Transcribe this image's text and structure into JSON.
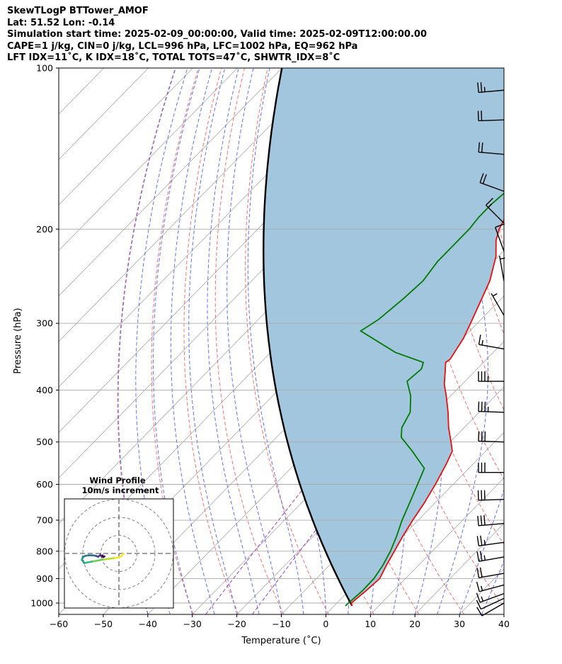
{
  "header": {
    "line1": "SkewTLogP BTTower_AMOF",
    "line2": "Lat: 51.52   Lon: -0.14",
    "line3": "Simulation start time: 2025-02-09_00:00:00, Valid time: 2025-02-09T12:00:00.00",
    "line4": "CAPE=1 j/kg, CIN=0 j/kg, LCL=996 hPa, LFC=1002 hPa, EQ=962 hPa",
    "line5": "LFT IDX=11˚C, K IDX=18˚C, TOTAL TOTS=47˚C, SHWTR_IDX=8˚C"
  },
  "chart_data": {
    "type": "line",
    "subtype": "skew-t log-p",
    "xlabel": "Temperature (˚C)",
    "ylabel": "Pressure (hPa)",
    "xlim": [
      -60,
      40
    ],
    "ylim": [
      1050,
      100
    ],
    "y_scale": "log",
    "x_ticks": [
      -60,
      -50,
      -40,
      -30,
      -20,
      -10,
      0,
      10,
      20,
      30,
      40
    ],
    "x_tick_labels": [
      "−60",
      "−50",
      "−40",
      "−30",
      "−20",
      "−10",
      "0",
      "10",
      "20",
      "30",
      "40"
    ],
    "y_ticks": [
      1000,
      900,
      800,
      700,
      600,
      500,
      400,
      300,
      200,
      100
    ],
    "y_tick_labels": [
      "1000",
      "900",
      "800",
      "700",
      "600",
      "500",
      "400",
      "300",
      "200",
      "100"
    ],
    "grid": true,
    "colors": {
      "temperature": "#e8100f",
      "dewpoint": "#007a00",
      "parcel": "#000000",
      "cape_fill": "#a3c6df",
      "dry_adiabats": "#f05a5a",
      "moist_adiabats": "#3d4ff0",
      "mixing_ratio": "#9b3fc0",
      "isotherms": "#aaaaaa",
      "wind_barbs": "#000000"
    },
    "series": [
      {
        "points": [
          {
            "p": 1012,
            "t": 4.0
          },
          {
            "p": 1000,
            "t": 3.2
          },
          {
            "p": 950,
            "t": 3.8
          },
          {
            "p": 900,
            "t": 4.2
          },
          {
            "p": 850,
            "t": 2.8
          },
          {
            "p": 800,
            "t": 1.5
          },
          {
            "p": 750,
            "t": 0.1
          },
          {
            "p": 700,
            "t": -1.2
          },
          {
            "p": 650,
            "t": -2.4
          },
          {
            "p": 600,
            "t": -4.0
          },
          {
            "p": 550,
            "t": -6.0
          },
          {
            "p": 520,
            "t": -7.5
          },
          {
            "p": 500,
            "t": -9.8
          },
          {
            "p": 470,
            "t": -13.5
          },
          {
            "p": 440,
            "t": -17.0
          },
          {
            "p": 410,
            "t": -21.0
          },
          {
            "p": 390,
            "t": -24.0
          },
          {
            "p": 370,
            "t": -26.5
          },
          {
            "p": 355,
            "t": -28.5
          },
          {
            "p": 350,
            "t": -28.2
          },
          {
            "p": 320,
            "t": -29.8
          },
          {
            "p": 300,
            "t": -31.5
          },
          {
            "p": 250,
            "t": -36.5
          },
          {
            "p": 225,
            "t": -40.5
          },
          {
            "p": 210,
            "t": -44.0
          },
          {
            "p": 200,
            "t": -45.8
          },
          {
            "p": 190,
            "t": -47.0
          },
          {
            "p": 170,
            "t": -48.5
          },
          {
            "p": 150,
            "t": -50.5
          },
          {
            "p": 125,
            "t": -53.0
          },
          {
            "p": 110,
            "t": -54.5
          },
          {
            "p": 100,
            "t": -55.5
          }
        ]
      },
      {
        "points": [
          {
            "p": 1012,
            "t": 2.5
          },
          {
            "p": 1000,
            "t": 2.6
          },
          {
            "p": 950,
            "t": 3.0
          },
          {
            "p": 900,
            "t": 2.9
          },
          {
            "p": 850,
            "t": 2.0
          },
          {
            "p": 800,
            "t": 0.6
          },
          {
            "p": 750,
            "t": -1.3
          },
          {
            "p": 700,
            "t": -3.6
          },
          {
            "p": 650,
            "t": -5.7
          },
          {
            "p": 600,
            "t": -8.0
          },
          {
            "p": 560,
            "t": -10.0
          },
          {
            "p": 520,
            "t": -16.5
          },
          {
            "p": 490,
            "t": -22.0
          },
          {
            "p": 470,
            "t": -24.0
          },
          {
            "p": 440,
            "t": -25.5
          },
          {
            "p": 410,
            "t": -29.0
          },
          {
            "p": 385,
            "t": -33.0
          },
          {
            "p": 365,
            "t": -32.5
          },
          {
            "p": 355,
            "t": -33.5
          },
          {
            "p": 340,
            "t": -42.0
          },
          {
            "p": 310,
            "t": -54.5
          },
          {
            "p": 295,
            "t": -53.0
          },
          {
            "p": 270,
            "t": -52.0
          },
          {
            "p": 250,
            "t": -51.5
          },
          {
            "p": 230,
            "t": -52.5
          },
          {
            "p": 210,
            "t": -52.5
          },
          {
            "p": 200,
            "t": -52.5
          },
          {
            "p": 190,
            "t": -53.0
          },
          {
            "p": 180,
            "t": -53.0
          },
          {
            "p": 170,
            "t": -52.5
          },
          {
            "p": 150,
            "t": -53.0
          },
          {
            "p": 120,
            "t": -54.0
          },
          {
            "p": 100,
            "t": -55.0
          }
        ]
      },
      {
        "kind": "dry adiabat from surface parcel",
        "start": {
          "p": 1012,
          "t": 4.0
        }
      }
    ],
    "wind_barbs": [
      {
        "p": 1000,
        "dir": 240,
        "spd_kt": 12
      },
      {
        "p": 980,
        "dir": 245,
        "spd_kt": 14
      },
      {
        "p": 960,
        "dir": 250,
        "spd_kt": 16
      },
      {
        "p": 925,
        "dir": 255,
        "spd_kt": 18
      },
      {
        "p": 880,
        "dir": 260,
        "spd_kt": 22
      },
      {
        "p": 820,
        "dir": 260,
        "spd_kt": 25
      },
      {
        "p": 770,
        "dir": 262,
        "spd_kt": 27
      },
      {
        "p": 710,
        "dir": 265,
        "spd_kt": 30
      },
      {
        "p": 640,
        "dir": 268,
        "spd_kt": 30
      },
      {
        "p": 570,
        "dir": 270,
        "spd_kt": 32
      },
      {
        "p": 500,
        "dir": 272,
        "spd_kt": 34
      },
      {
        "p": 440,
        "dir": 272,
        "spd_kt": 36
      },
      {
        "p": 385,
        "dir": 270,
        "spd_kt": 38
      },
      {
        "p": 335,
        "dir": 280,
        "spd_kt": 18
      },
      {
        "p": 290,
        "dir": 330,
        "spd_kt": 5
      },
      {
        "p": 250,
        "dir": 350,
        "spd_kt": 8
      },
      {
        "p": 220,
        "dir": 340,
        "spd_kt": 12
      },
      {
        "p": 195,
        "dir": 315,
        "spd_kt": 15
      },
      {
        "p": 170,
        "dir": 290,
        "spd_kt": 20
      },
      {
        "p": 145,
        "dir": 275,
        "spd_kt": 22
      },
      {
        "p": 125,
        "dir": 268,
        "spd_kt": 24
      },
      {
        "p": 110,
        "dir": 265,
        "spd_kt": 25
      }
    ],
    "hodograph": {
      "title": "Wind Profile",
      "subtitle": "10m/s increment",
      "ring_increment_ms": 10,
      "ring_count": 3,
      "trace_ms": [
        [
          2.5,
          0
        ],
        [
          1.5,
          -1.5
        ],
        [
          -0.5,
          -2.3
        ],
        [
          -3,
          -2.6
        ],
        [
          -6,
          -3.0
        ],
        [
          -9,
          -3.4
        ],
        [
          -12,
          -4.0
        ],
        [
          -15,
          -4.5
        ],
        [
          -17.5,
          -5.0
        ],
        [
          -19.2,
          -5.3
        ],
        [
          -20.5,
          -3.5
        ],
        [
          -20.0,
          -2.0
        ],
        [
          -18.5,
          -1.3
        ],
        [
          -16.5,
          -1.0
        ],
        [
          -14,
          -1.1
        ],
        [
          -12.5,
          -1.4
        ],
        [
          -11.5,
          -1.9
        ],
        [
          -10.3,
          -0.8
        ],
        [
          -9.5,
          -1.8
        ],
        [
          -9.0,
          -1.1
        ],
        [
          -8.7,
          -2.0
        ],
        [
          -8.0,
          -1.6
        ]
      ]
    }
  }
}
